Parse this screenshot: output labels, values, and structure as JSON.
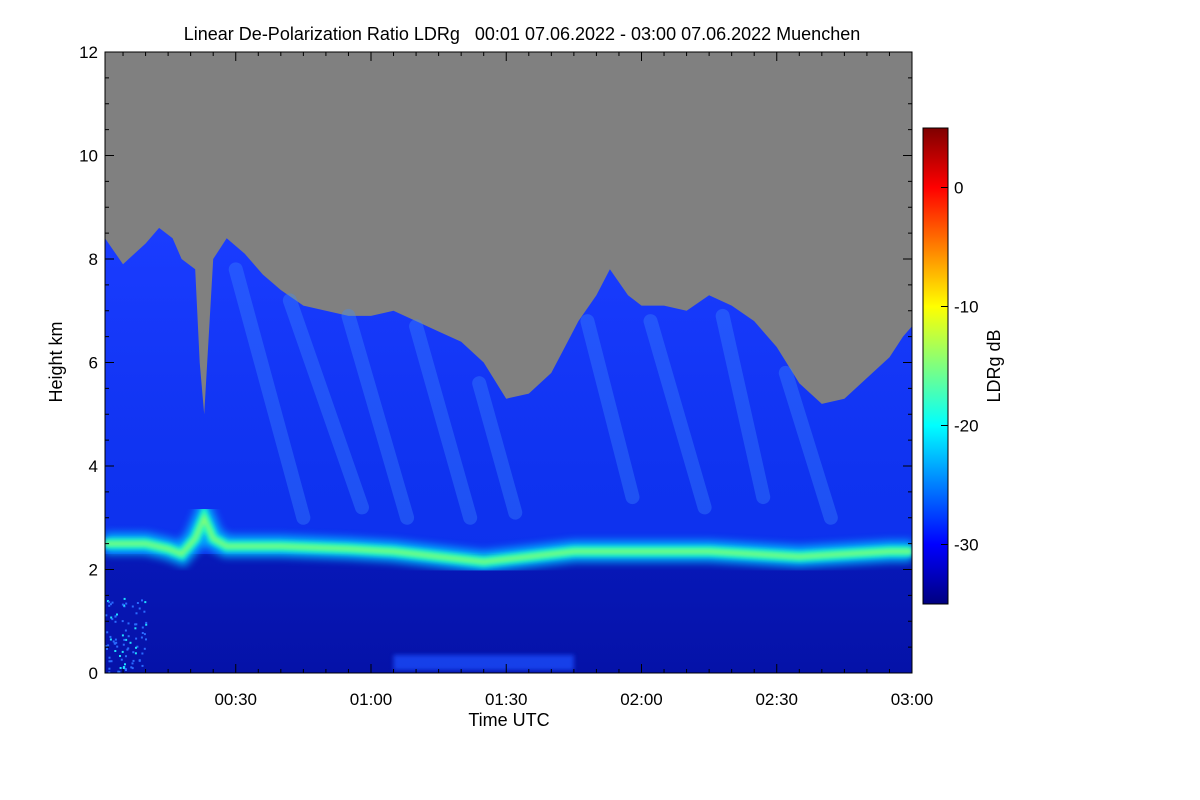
{
  "chart_data": {
    "type": "heatmap",
    "title": "Linear De-Polarization Ratio LDRg   00:01 07.06.2022 - 03:00 07.06.2022 Muenchen",
    "xlabel": "Time UTC",
    "ylabel": "Height km",
    "colorbar_label": "LDRg dB",
    "xlim_minutes": [
      1,
      180
    ],
    "ylim": [
      0,
      12
    ],
    "x_ticks": [
      {
        "label": "00:30",
        "minutes": 30
      },
      {
        "label": "01:00",
        "minutes": 60
      },
      {
        "label": "01:30",
        "minutes": 90
      },
      {
        "label": "02:00",
        "minutes": 120
      },
      {
        "label": "02:30",
        "minutes": 150
      },
      {
        "label": "03:00",
        "minutes": 180
      }
    ],
    "y_ticks": [
      {
        "label": "0",
        "value": 0
      },
      {
        "label": "2",
        "value": 2
      },
      {
        "label": "4",
        "value": 4
      },
      {
        "label": "6",
        "value": 6
      },
      {
        "label": "8",
        "value": 8
      },
      {
        "label": "10",
        "value": 10
      },
      {
        "label": "12",
        "value": 12
      }
    ],
    "colorbar": {
      "range": [
        -35,
        5
      ],
      "ticks": [
        {
          "label": "0",
          "value": 0
        },
        {
          "label": "-10",
          "value": -10
        },
        {
          "label": "-20",
          "value": -20
        },
        {
          "label": "-30",
          "value": -30
        }
      ],
      "colormap": [
        "#00007f",
        "#0000ff",
        "#007fff",
        "#00ffff",
        "#7fff7f",
        "#ffff00",
        "#ff7f00",
        "#ff0000",
        "#7f0000"
      ]
    },
    "no_signal_color": "#808080",
    "signal_top_km": [
      [
        1,
        8.4
      ],
      [
        5,
        7.9
      ],
      [
        10,
        8.3
      ],
      [
        13,
        8.6
      ],
      [
        16,
        8.4
      ],
      [
        18,
        8.0
      ],
      [
        21,
        7.8
      ],
      [
        22,
        6.0
      ],
      [
        23,
        5.0
      ],
      [
        24,
        6.5
      ],
      [
        25,
        8.0
      ],
      [
        28,
        8.4
      ],
      [
        32,
        8.1
      ],
      [
        36,
        7.7
      ],
      [
        40,
        7.4
      ],
      [
        45,
        7.1
      ],
      [
        50,
        7.0
      ],
      [
        55,
        6.9
      ],
      [
        60,
        6.9
      ],
      [
        65,
        7.0
      ],
      [
        70,
        6.8
      ],
      [
        75,
        6.6
      ],
      [
        80,
        6.4
      ],
      [
        85,
        6.0
      ],
      [
        90,
        5.3
      ],
      [
        95,
        5.4
      ],
      [
        100,
        5.8
      ],
      [
        103,
        6.3
      ],
      [
        106,
        6.8
      ],
      [
        110,
        7.3
      ],
      [
        113,
        7.8
      ],
      [
        117,
        7.3
      ],
      [
        120,
        7.1
      ],
      [
        125,
        7.1
      ],
      [
        130,
        7.0
      ],
      [
        135,
        7.3
      ],
      [
        140,
        7.1
      ],
      [
        145,
        6.8
      ],
      [
        150,
        6.3
      ],
      [
        155,
        5.6
      ],
      [
        160,
        5.2
      ],
      [
        165,
        5.3
      ],
      [
        170,
        5.7
      ],
      [
        175,
        6.1
      ],
      [
        178,
        6.5
      ],
      [
        180,
        6.7
      ]
    ],
    "melting_layer_km": [
      [
        1,
        2.5
      ],
      [
        10,
        2.5
      ],
      [
        15,
        2.4
      ],
      [
        18,
        2.3
      ],
      [
        21,
        2.6
      ],
      [
        23,
        3.0
      ],
      [
        25,
        2.6
      ],
      [
        28,
        2.45
      ],
      [
        40,
        2.45
      ],
      [
        55,
        2.4
      ],
      [
        65,
        2.35
      ],
      [
        75,
        2.25
      ],
      [
        85,
        2.15
      ],
      [
        95,
        2.25
      ],
      [
        105,
        2.35
      ],
      [
        115,
        2.35
      ],
      [
        125,
        2.35
      ],
      [
        135,
        2.35
      ],
      [
        145,
        2.3
      ],
      [
        155,
        2.25
      ],
      [
        165,
        2.3
      ],
      [
        175,
        2.35
      ],
      [
        180,
        2.35
      ]
    ]
  }
}
